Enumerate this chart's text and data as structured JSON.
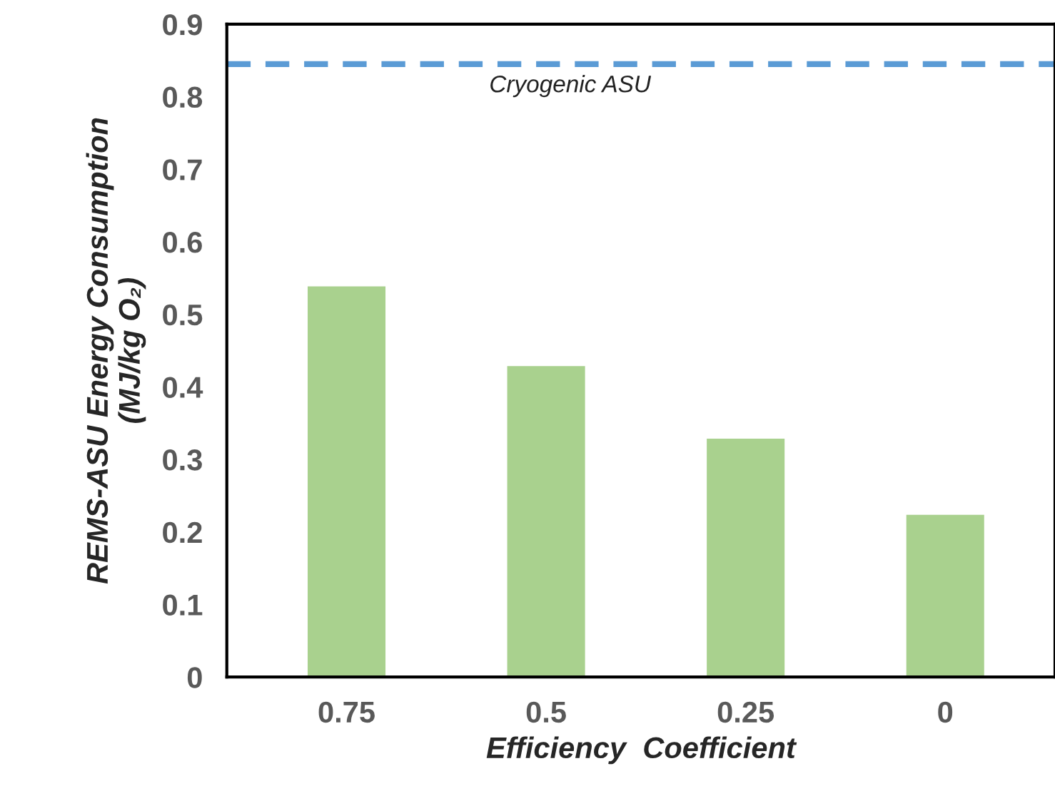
{
  "chart_data": {
    "type": "bar",
    "categories": [
      "0.75",
      "0.5",
      "0.25",
      "0"
    ],
    "values": [
      0.54,
      0.43,
      0.33,
      0.225
    ],
    "color": "#a9d18e",
    "xlabel": "Efficiency  Coefficient",
    "ylabel": "REMS-ASU Energy Consumption\n(MJ/kg O₂)",
    "ylim": [
      0,
      0.9
    ],
    "yticks": [
      0,
      0.1,
      0.2,
      0.3,
      0.4,
      0.5,
      0.6,
      0.7,
      0.8,
      0.9
    ],
    "ref_lines": [
      {
        "axis": "y",
        "value": 0.845,
        "label": "Cryogenic ASU",
        "color": "#5b9bd5",
        "line_style": "dashed"
      }
    ],
    "grid": false,
    "legend": false
  }
}
